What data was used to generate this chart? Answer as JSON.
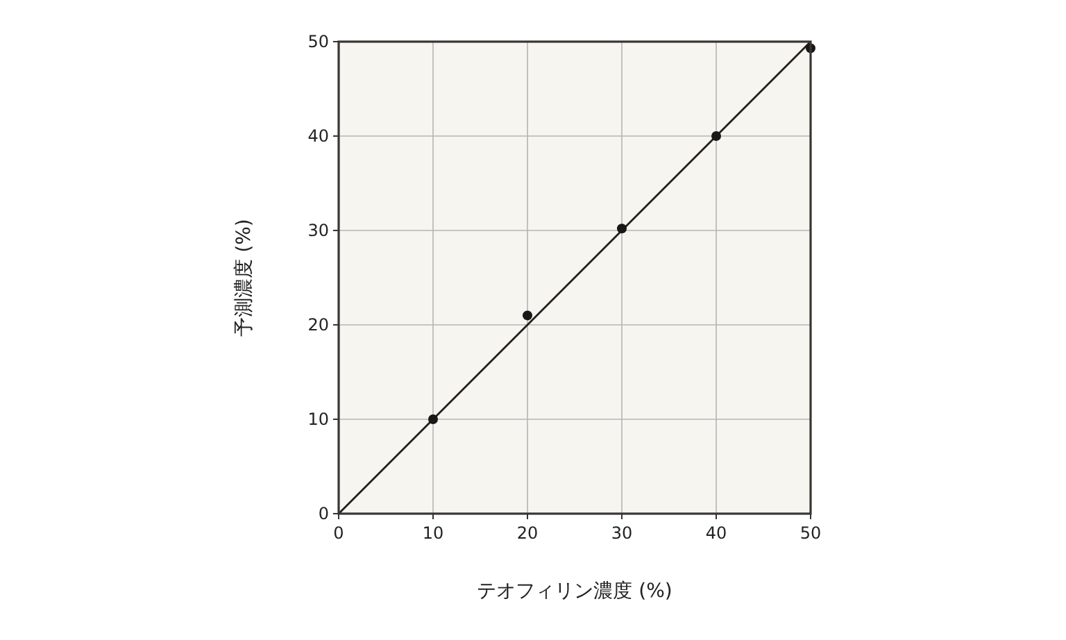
{
  "chart_data": {
    "type": "scatter",
    "xlabel": "テオフィリン濃度 (%)",
    "ylabel": "予測濃度 (%)",
    "xlim": [
      0,
      50
    ],
    "ylim": [
      0,
      50
    ],
    "xticks": [
      0,
      10,
      20,
      30,
      40,
      50
    ],
    "yticks": [
      0,
      10,
      20,
      30,
      40,
      50
    ],
    "grid": true,
    "marker": "circle",
    "series": [
      {
        "color": "#1a1717",
        "x": [
          10,
          20,
          30,
          40,
          50
        ],
        "values": [
          10,
          21,
          30.2,
          40,
          49.3
        ]
      },
      {
        "type": "line",
        "color": "#231f1f",
        "x": [
          0,
          50
        ],
        "values": [
          0,
          50
        ],
        "marker": "none",
        "line_style": "solid"
      }
    ]
  }
}
